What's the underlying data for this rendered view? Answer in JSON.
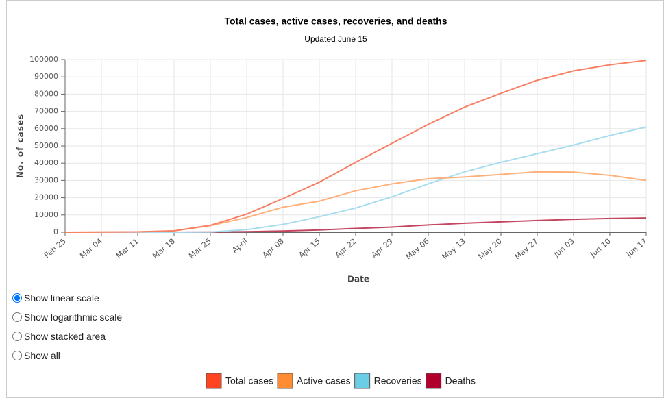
{
  "chart_data": {
    "type": "line",
    "title": "Total cases, active cases, recoveries, and deaths",
    "subtitle": "Updated June 15",
    "x_label": "Date",
    "y_label": "No. of cases",
    "categories": [
      "Feb 25",
      "Mar 04",
      "Mar 11",
      "Mar 18",
      "Mar 25",
      "April",
      "Apr 08",
      "Apr 15",
      "Apr 22",
      "Apr 29",
      "May 06",
      "May 13",
      "May 20",
      "May 27",
      "Jun 03",
      "Jun 10",
      "Jun 17"
    ],
    "series": [
      {
        "name": "Total cases",
        "color": "#ff4422",
        "line_color": "#f97f63",
        "values": [
          0,
          100,
          200,
          800,
          4000,
          10500,
          19500,
          29000,
          40500,
          51500,
          62500,
          72500,
          80500,
          88000,
          93500,
          97000,
          99500
        ]
      },
      {
        "name": "Active cases",
        "color": "#ff8c33",
        "line_color": "#ffb07a",
        "values": [
          0,
          100,
          200,
          800,
          3800,
          8500,
          14500,
          18000,
          24000,
          28000,
          31000,
          32000,
          33500,
          35000,
          34800,
          33000,
          30000
        ]
      },
      {
        "name": "Recoveries",
        "color": "#6ccde6",
        "line_color": "#a8dcef",
        "values": [
          0,
          0,
          0,
          0,
          100,
          1500,
          4500,
          9000,
          14000,
          20500,
          28000,
          35000,
          40500,
          45500,
          50500,
          56000,
          61000
        ]
      },
      {
        "name": "Deaths",
        "color": "#b0002e",
        "line_color": "#c24660",
        "values": [
          0,
          0,
          0,
          0,
          100,
          300,
          700,
          1300,
          2200,
          3000,
          4200,
          5200,
          6000,
          6800,
          7500,
          8000,
          8300
        ]
      }
    ],
    "ylim": [
      0,
      100000
    ],
    "yticks": [
      0,
      10000,
      20000,
      30000,
      40000,
      50000,
      60000,
      70000,
      80000,
      90000,
      100000
    ],
    "grid": true
  },
  "controls": {
    "options": [
      "Show linear scale",
      "Show logarithmic scale",
      "Show stacked area",
      "Show all"
    ],
    "selected": 0
  }
}
